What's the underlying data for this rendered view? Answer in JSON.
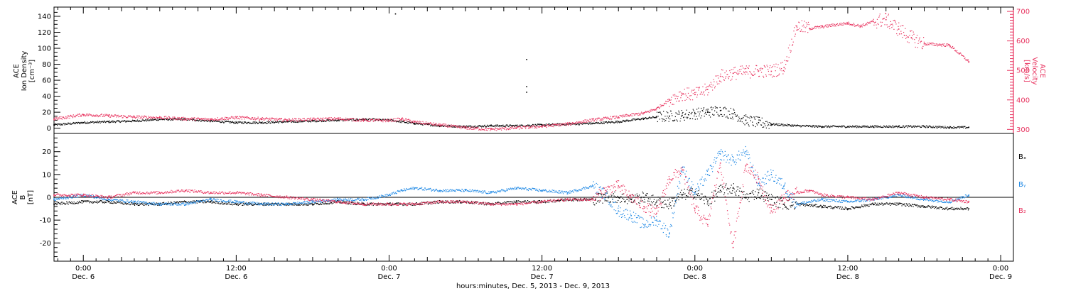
{
  "colors": {
    "black": "#000000",
    "pink": "#e8335f",
    "blue": "#1e88e5"
  },
  "xaxis": {
    "title": "hours:minutes, Dec.  5, 2013 - Dec.  9, 2013",
    "range_hours": [
      -2.3,
      73.0
    ],
    "ticks": [
      {
        "hours": 0,
        "time": "0:00",
        "date": "Dec. 6"
      },
      {
        "hours": 12,
        "time": "12:00",
        "date": "Dec. 6"
      },
      {
        "hours": 24,
        "time": "0:00",
        "date": "Dec. 7"
      },
      {
        "hours": 36,
        "time": "12:00",
        "date": "Dec. 7"
      },
      {
        "hours": 48,
        "time": "0:00",
        "date": "Dec. 8"
      },
      {
        "hours": 60,
        "time": "12:00",
        "date": "Dec. 8"
      },
      {
        "hours": 72,
        "time": "0:00",
        "date": "Dec. 9"
      }
    ]
  },
  "panel1": {
    "left_label": [
      "ACE",
      "Ion Density",
      "[cm⁻³]"
    ],
    "right_label": [
      "ACE",
      "Velocity",
      "[km/s]"
    ]
  },
  "panel2": {
    "left_label": [
      "ACE",
      "B",
      "[nT]"
    ],
    "legend": [
      {
        "label": "Bₓ",
        "color": "#000000"
      },
      {
        "label": "Bᵧ",
        "color": "#1e88e5"
      },
      {
        "label": "B₂",
        "color": "#e8335f"
      }
    ]
  },
  "chart_data": [
    {
      "type": "scatter",
      "title": "",
      "x_unit": "hours from 0:00 Dec. 6, 2013",
      "ylim_left": [
        -3,
        148
      ],
      "yticks_left": [
        0,
        20,
        40,
        60,
        80,
        100,
        120,
        140
      ],
      "ylim_right": [
        296,
        705
      ],
      "yticks_right": [
        300,
        400,
        500,
        600,
        700
      ],
      "series": [
        {
          "name": "Ion Density",
          "axis": "left",
          "color": "#000000",
          "x": [
            -2.3,
            0,
            2,
            4,
            6,
            8,
            10,
            12,
            14,
            16,
            18,
            20,
            22,
            24,
            26,
            28,
            30,
            32,
            34,
            36,
            38,
            40,
            42,
            44,
            45,
            46,
            47,
            48,
            49,
            50,
            51,
            52,
            53,
            54,
            56,
            58,
            60,
            62,
            64,
            66,
            68,
            69.5
          ],
          "y": [
            4,
            7,
            8,
            9,
            11,
            11,
            9,
            7,
            7,
            8,
            9,
            10,
            11,
            10,
            6,
            3,
            2,
            3,
            3,
            4,
            5,
            6,
            8,
            12,
            14,
            15,
            16,
            18,
            20,
            22,
            18,
            10,
            7,
            5,
            3,
            2,
            2,
            2,
            2,
            2,
            1,
            1
          ]
        },
        {
          "name": "Velocity",
          "axis": "right",
          "color": "#e8335f",
          "x": [
            -2.3,
            0,
            2,
            4,
            6,
            8,
            10,
            12,
            14,
            16,
            18,
            20,
            22,
            24,
            25,
            26,
            28,
            30,
            32,
            34,
            36,
            38,
            40,
            42,
            44,
            45,
            46,
            47,
            48,
            49,
            50,
            51,
            52,
            53,
            54,
            55,
            56,
            57,
            58,
            60,
            61,
            62,
            63,
            64,
            65,
            66,
            68,
            69.5
          ],
          "y": [
            335,
            350,
            346,
            342,
            340,
            336,
            334,
            340,
            336,
            332,
            334,
            336,
            331,
            330,
            335,
            325,
            315,
            305,
            300,
            305,
            310,
            318,
            332,
            342,
            355,
            370,
            400,
            420,
            418,
            435,
            480,
            490,
            495,
            498,
            497,
            510,
            650,
            642,
            648,
            660,
            650,
            665,
            672,
            640,
            610,
            590,
            585,
            530
          ]
        },
        {
          "name": "",
          "axis": "left",
          "color": "#000000",
          "x": [
            24.5,
            34.8,
            34.8,
            34.8
          ],
          "y": [
            143,
            86,
            52,
            45
          ]
        }
      ]
    },
    {
      "type": "line",
      "title": "",
      "ylabel": "B [nT]",
      "x_unit": "hours from 0:00 Dec. 6, 2013",
      "ylim": [
        -28,
        28
      ],
      "yticks": [
        -20,
        -10,
        0,
        10,
        20
      ],
      "series": [
        {
          "name": "Bx",
          "color": "#000000",
          "x": [
            -2.3,
            0,
            2,
            4,
            6,
            8,
            10,
            12,
            14,
            16,
            18,
            20,
            22,
            24,
            26,
            28,
            30,
            32,
            34,
            36,
            38,
            40,
            41,
            42,
            43,
            44,
            45,
            46,
            47,
            48,
            49,
            50,
            51,
            52,
            53,
            54,
            55,
            56,
            58,
            60,
            62,
            64,
            66,
            68,
            69.5
          ],
          "y": [
            -3,
            -2,
            -2,
            -3,
            -3,
            -2,
            -2,
            -3,
            -3,
            -3,
            -3,
            -2,
            -3,
            -3,
            -3,
            -2,
            -2,
            -3,
            -2,
            -2,
            -1,
            -1,
            0,
            0,
            -1,
            0,
            -2,
            -3,
            1,
            2,
            -2,
            3,
            4,
            0,
            2,
            -1,
            -3,
            -3,
            -4,
            -5,
            -3,
            -3,
            -4,
            -5,
            -5
          ]
        },
        {
          "name": "By",
          "color": "#1e88e5",
          "x": [
            -2.3,
            0,
            2,
            4,
            6,
            8,
            10,
            12,
            14,
            16,
            18,
            20,
            22,
            24,
            25,
            26,
            28,
            30,
            32,
            34,
            36,
            38,
            40,
            41,
            42,
            43,
            44,
            45,
            46,
            47,
            48,
            49,
            50,
            51,
            52,
            53,
            54,
            55,
            56,
            57,
            58,
            60,
            62,
            64,
            66,
            68,
            69.5
          ],
          "y": [
            -1,
            1,
            -1,
            -2,
            -3,
            -3,
            -1,
            -2,
            -3,
            -3,
            -2,
            -1,
            -1,
            1,
            3,
            4,
            3,
            3,
            2,
            4,
            3,
            2,
            5,
            1,
            -6,
            -8,
            -12,
            -10,
            -16,
            13,
            2,
            10,
            19,
            16,
            20,
            6,
            10,
            5,
            -3,
            -2,
            -1,
            -2,
            -1,
            1,
            -1,
            -2,
            1
          ]
        },
        {
          "name": "Bz",
          "color": "#e8335f",
          "x": [
            -2.3,
            0,
            2,
            4,
            6,
            8,
            10,
            12,
            14,
            16,
            18,
            20,
            22,
            24,
            26,
            28,
            30,
            32,
            34,
            36,
            38,
            40,
            41,
            42,
            43,
            44,
            45,
            46,
            47,
            48,
            49,
            50,
            51,
            52,
            53,
            54,
            55,
            56,
            57,
            58,
            60,
            62,
            64,
            66,
            68,
            69.5
          ],
          "y": [
            1,
            1,
            0,
            2,
            2,
            3,
            2,
            2,
            1,
            0,
            -1,
            -2,
            -3,
            -3,
            -3,
            -2,
            -2,
            -3,
            -3,
            -2,
            -1,
            -1,
            3,
            5,
            0,
            -4,
            -7,
            8,
            12,
            -5,
            -12,
            15,
            -22,
            14,
            8,
            -6,
            0,
            2,
            3,
            1,
            0,
            -1,
            2,
            0,
            -1,
            -2
          ]
        }
      ]
    }
  ]
}
